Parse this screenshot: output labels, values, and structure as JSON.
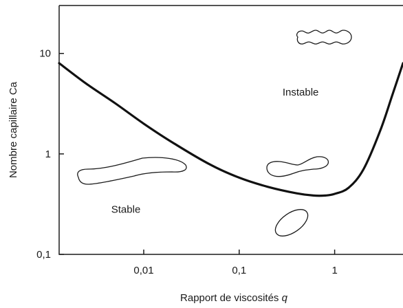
{
  "chart_data": {
    "type": "line",
    "xlabel": "Rapport de viscosités",
    "xlabel_var": "q",
    "ylabel": "Nombre capillaire Ca",
    "x_scale": "log",
    "y_scale": "log",
    "xlim": [
      0.0013,
      5.2
    ],
    "ylim": [
      0.1,
      30
    ],
    "x_ticks": [
      {
        "value": 0.01,
        "label": "0,01"
      },
      {
        "value": 0.1,
        "label": "0,1"
      },
      {
        "value": 1,
        "label": "1"
      }
    ],
    "y_ticks": [
      {
        "value": 0.1,
        "label": "0,1"
      },
      {
        "value": 1,
        "label": "1"
      },
      {
        "value": 10,
        "label": "10"
      }
    ],
    "grid": false,
    "series": [
      {
        "color": "#111111",
        "x": [
          0.0013,
          0.0025,
          0.005,
          0.01,
          0.02,
          0.05,
          0.1,
          0.2,
          0.4,
          0.6,
          0.8,
          1.0,
          1.4,
          2.0,
          3.0,
          4.0,
          5.2
        ],
        "y": [
          8.0,
          5.0,
          3.2,
          2.0,
          1.3,
          0.78,
          0.58,
          0.47,
          0.405,
          0.385,
          0.385,
          0.4,
          0.46,
          0.7,
          1.7,
          3.8,
          8.0
        ]
      }
    ],
    "annotations": [
      {
        "text": "Instable",
        "x": 0.44,
        "y": 3.8
      },
      {
        "text": "Stable",
        "x": 0.0065,
        "y": 0.26
      }
    ],
    "drop_sketches": [
      "wavy-elongated-drop",
      "elongated-stable-drop",
      "waisted-unstable-drop",
      "ellipse-stable-drop"
    ]
  }
}
